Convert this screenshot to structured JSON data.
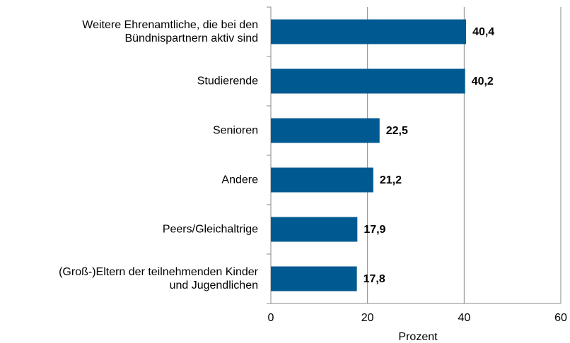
{
  "chart_data": {
    "type": "barh",
    "categories": [
      "Weitere Ehrenamtliche, die bei den\nBündnispartnern aktiv sind",
      "Studierende",
      "Senioren",
      "Andere",
      "Peers/Gleichaltrige",
      "(Groß-)Eltern der teilnehmenden Kinder\nund Jugendlichen"
    ],
    "values": [
      40.4,
      40.2,
      22.5,
      21.2,
      17.9,
      17.8
    ],
    "value_labels": [
      "40,4",
      "40,2",
      "22,5",
      "21,2",
      "17,9",
      "17,8"
    ],
    "color": "#005a92",
    "xlim": [
      0,
      60
    ],
    "xticks": [
      0,
      20,
      40,
      60
    ],
    "grid": true,
    "xlabel": "Prozent"
  }
}
